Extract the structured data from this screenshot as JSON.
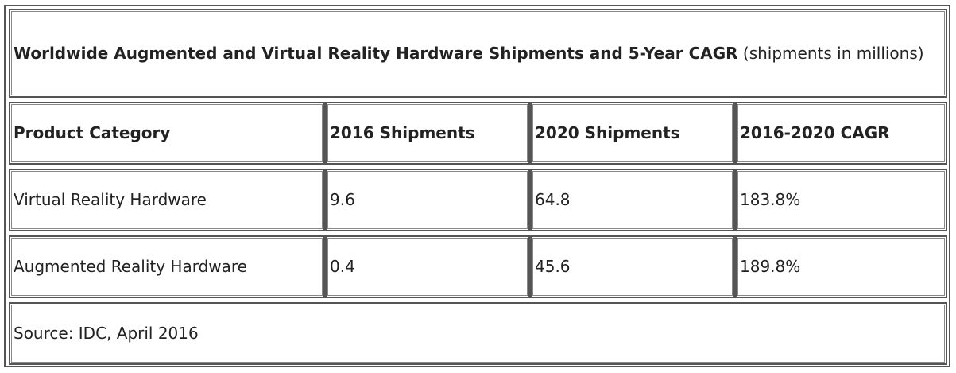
{
  "table": {
    "title_bold": "Worldwide Augmented and Virtual Reality Hardware Shipments and 5-Year CAGR",
    "title_note": " (shipments in millions)",
    "headers": [
      "Product Category",
      "2016 Shipments",
      "2020 Shipments",
      "2016-2020 CAGR"
    ],
    "rows": [
      [
        "Virtual Reality Hardware",
        "9.6",
        "64.8",
        "183.8%"
      ],
      [
        "Augmented Reality Hardware",
        "0.4",
        "45.6",
        "189.8%"
      ]
    ],
    "source": "Source: IDC, April 2016"
  }
}
